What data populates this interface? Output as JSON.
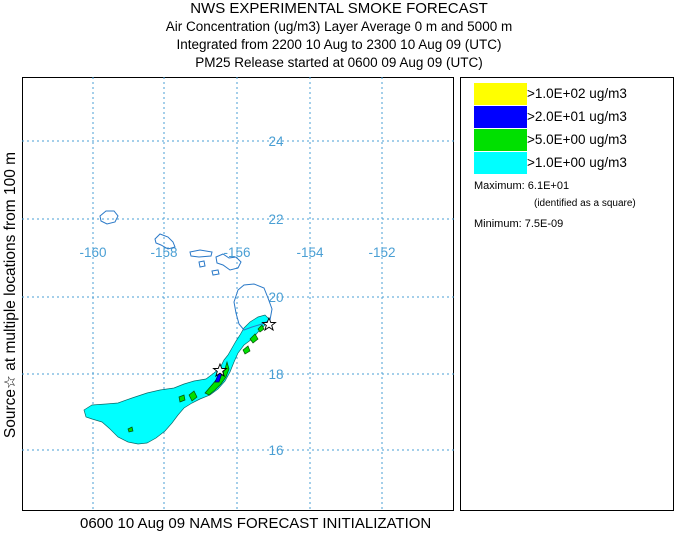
{
  "title": {
    "line1": "NWS EXPERIMENTAL SMOKE FORECAST",
    "line2": "Air Concentration (ug/m3) Layer Average    0 m and  5000 m",
    "line3": "Integrated from 2200 10 Aug to 2300 10 Aug 09 (UTC)",
    "line4": "PM25 Release started at 0600 09 Aug 09 (UTC)"
  },
  "side_label": "Source☆  at multiple locations    from   100 m",
  "footer": "0600 10 Aug 09 NAMS FORECAST INITIALIZATION",
  "map": {
    "lon_labels": [
      "-160",
      "-158",
      "-156",
      "-154",
      "-152"
    ],
    "lat_labels": [
      "24",
      "22",
      "20",
      "18",
      "16"
    ]
  },
  "legend": {
    "items": [
      {
        "label": ">1.0E+02 ug/m3",
        "color": "#ffff00"
      },
      {
        "label": ">2.0E+01 ug/m3",
        "color": "#0000ff"
      },
      {
        "label": ">5.0E+00 ug/m3",
        "color": "#00e000"
      },
      {
        "label": ">1.0E+00 ug/m3",
        "color": "#00ffff"
      }
    ],
    "maximum": "Maximum: 6.1E+01",
    "maximum_note": "(identified as a square)",
    "minimum": "Minimum: 7.5E-09"
  },
  "colors": {
    "grid": "#4a9fd4",
    "coast": "#2a79c8",
    "label": "#4a9fd4",
    "smoke_light": "#00ffff",
    "smoke_mid": "#00e000",
    "smoke_high": "#0000ff"
  }
}
